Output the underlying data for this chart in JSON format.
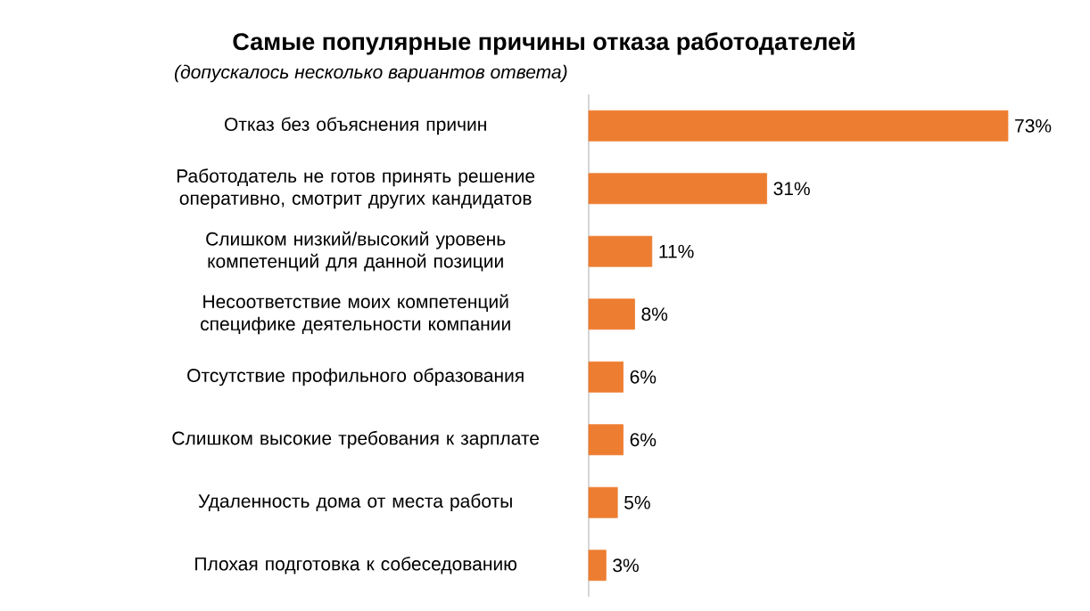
{
  "chart_data": {
    "type": "bar",
    "orientation": "horizontal",
    "title": "Самые популярные причины отказа работодателей",
    "subtitle": "(допускалось несколько вариантов ответа)",
    "categories": [
      "Отказ без объяснения причин",
      "Работодатель не готов принять решение оперативно, смотрит других кандидатов",
      "Слишком низкий/высокий уровень компетенций для данной позиции",
      "Несоответствие моих компетенций специфике деятельности компании",
      "Отсутствие профильного образования",
      "Слишком высокие требования к зарплате",
      "Удаленность дома от места работы",
      "Плохая подготовка к собеседованию"
    ],
    "values": [
      73,
      31,
      11,
      8,
      6,
      6,
      5,
      3
    ],
    "value_labels": [
      "73%",
      "31%",
      "11%",
      "8%",
      "6%",
      "6%",
      "5%",
      "3%"
    ],
    "color": "#ed7d31",
    "tick_labels": "y"
  }
}
